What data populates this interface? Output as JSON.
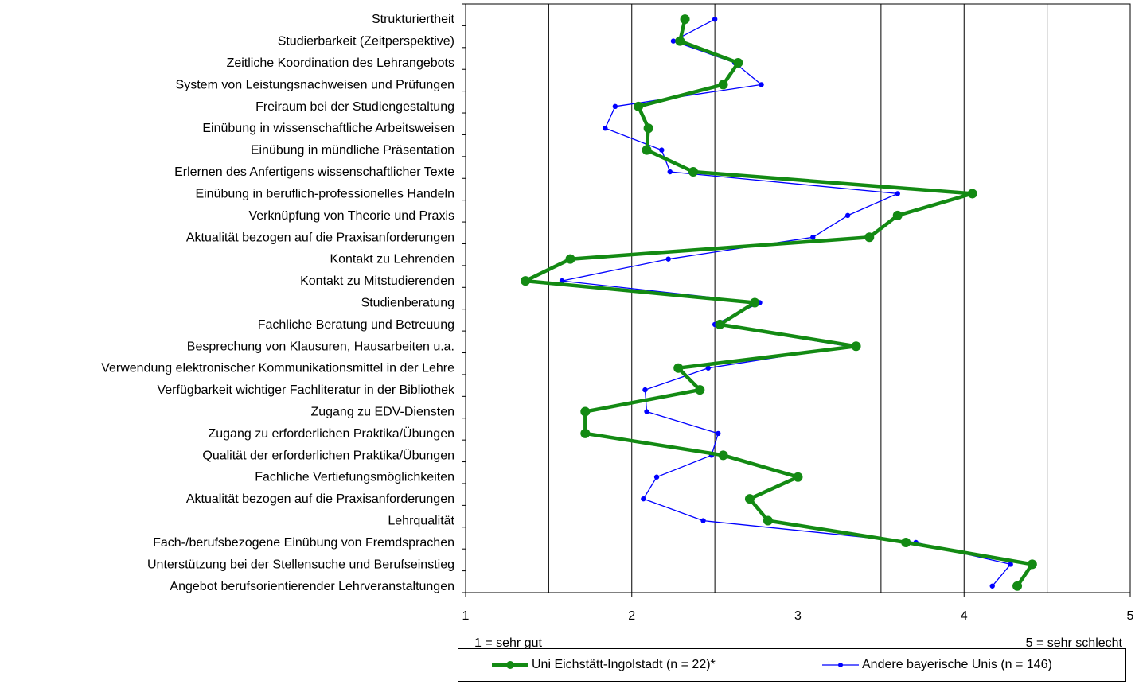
{
  "chart_data": {
    "type": "line",
    "orientation": "horizontal-profile",
    "categories": [
      "Strukturiertheit",
      "Studierbarkeit (Zeitperspektive)",
      "Zeitliche Koordination des Lehrangebots",
      "System von Leistungsnachweisen und Prüfungen",
      "Freiraum bei der Studiengestaltung",
      "Einübung in wissenschaftliche Arbeitsweisen",
      "Einübung in mündliche Präsentation",
      "Erlernen des Anfertigens wissenschaftlicher Texte",
      "Einübung in beruflich-professionelles Handeln",
      "Verknüpfung von Theorie und Praxis",
      "Aktualität bezogen auf die Praxisanforderungen",
      "Kontakt zu Lehrenden",
      "Kontakt zu Mitstudierenden",
      "Studienberatung",
      "Fachliche Beratung und Betreuung",
      "Besprechung von Klausuren, Hausarbeiten u.a.",
      "Verwendung elektronischer Kommunikationsmittel in der Lehre",
      "Verfügbarkeit wichtiger Fachliteratur in der Bibliothek",
      "Zugang zu EDV-Diensten",
      "Zugang zu erforderlichen Praktika/Übungen",
      "Qualität der erforderlichen Praktika/Übungen",
      "Fachliche Vertiefungsmöglichkeiten",
      "Aktualität bezogen auf die Praxisanforderungen",
      "Lehrqualität",
      "Fach-/berufsbezogene Einübung von Fremdsprachen",
      "Unterstützung bei der Stellensuche und Berufseinstieg",
      "Angebot berufsorientierender Lehrveranstaltungen"
    ],
    "series": [
      {
        "name": "Uni Eichstätt-Ingolstadt (n = 22)*",
        "color": "#138a13",
        "values": [
          2.32,
          2.29,
          2.64,
          2.55,
          2.04,
          2.1,
          2.09,
          2.37,
          4.05,
          3.6,
          3.43,
          1.63,
          1.36,
          2.74,
          2.53,
          3.35,
          2.28,
          2.41,
          1.72,
          1.72,
          2.55,
          3.0,
          2.71,
          2.82,
          3.65,
          4.41,
          4.32
        ]
      },
      {
        "name": "Andere bayerische Unis (n = 146)",
        "color": "#0000ff",
        "values": [
          2.5,
          2.25,
          2.62,
          2.78,
          1.9,
          1.84,
          2.18,
          2.23,
          3.6,
          3.3,
          3.09,
          2.22,
          1.58,
          2.77,
          2.5,
          3.3,
          2.46,
          2.08,
          2.09,
          2.52,
          2.48,
          2.15,
          2.07,
          2.43,
          3.71,
          4.28,
          4.17
        ]
      }
    ],
    "x_ticks": [
      "1",
      "2",
      "3",
      "4",
      "5"
    ],
    "xlim": [
      1,
      5
    ],
    "gridlines": [
      1.5,
      2,
      2.5,
      3,
      3.5,
      4,
      4.5
    ],
    "scale_note_left": "1 = sehr gut",
    "scale_note_right": "5 = sehr schlecht",
    "legend_position": "bottom",
    "grid": true
  }
}
